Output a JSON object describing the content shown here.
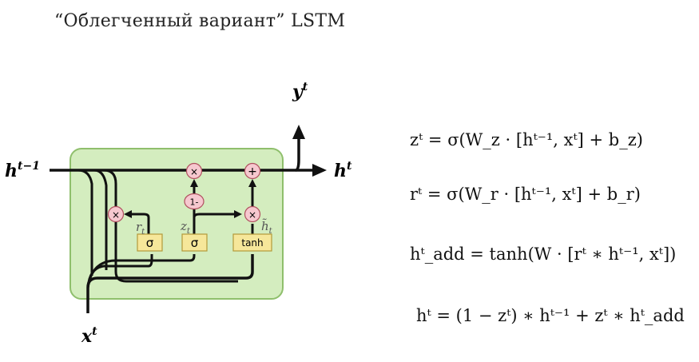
{
  "title": "“Облегченный вариант” LSTM",
  "diagram": {
    "input_prev_hidden": {
      "base": "h",
      "sup": "t−1"
    },
    "output_hidden": {
      "base": "h",
      "sup": "t"
    },
    "output_y": {
      "base": "y",
      "sup": "t"
    },
    "input_x": {
      "base": "x",
      "sup": "t"
    },
    "gates": {
      "sigma_r": "σ",
      "sigma_z": "σ",
      "tanh": "tanh"
    },
    "ops": {
      "mult_top": "×",
      "plus_top": "+",
      "one_minus": "1-",
      "mult_r": "×",
      "mult_h": "×"
    },
    "labels": {
      "r": {
        "base": "r",
        "sub": "t"
      },
      "z": {
        "base": "z",
        "sub": "t"
      },
      "h_tilde": {
        "base": "h̃",
        "sub": "t"
      }
    },
    "colors": {
      "cell_fill": "#d4edbf",
      "cell_stroke": "#8fbf6c",
      "gate_fill": "#f6e79a",
      "gate_stroke": "#b49a3a",
      "op_fill": "#f6c8cf",
      "op_stroke": "#b0505f"
    }
  },
  "equations": {
    "eq1": "zᵗ = σ(W_z · [hᵗ⁻¹, xᵗ] + b_z)",
    "eq2": "rᵗ = σ(W_r · [hᵗ⁻¹, xᵗ] + b_r)",
    "eq3": "hᵗ_add = tanh(W · [rᵗ ∗ hᵗ⁻¹, xᵗ])",
    "eq4": "hᵗ = (1 − zᵗ) ∗ hᵗ⁻¹ + zᵗ ∗ hᵗ_add"
  }
}
